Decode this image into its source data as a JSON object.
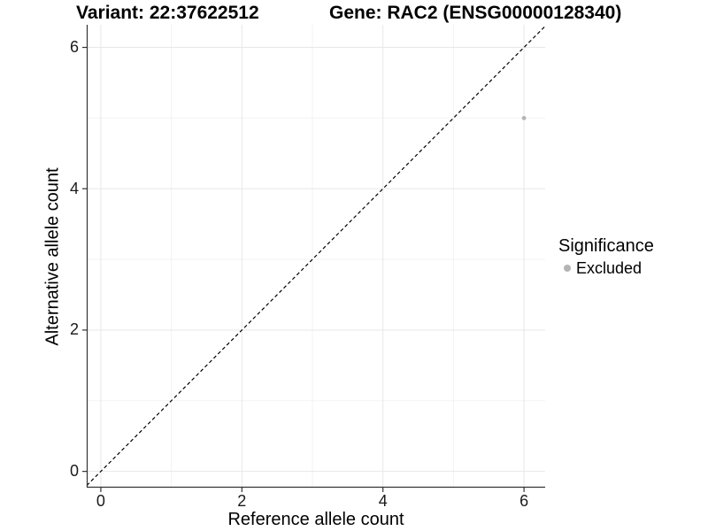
{
  "colors": {
    "background": "#ffffff",
    "axis_line": "#333333",
    "tick_mark": "#333333",
    "grid_major": "#e7e7e7",
    "grid_minor": "#f3f3f3",
    "identity_line": "#000000",
    "point_excluded": "#b4b4b4",
    "text": "#000000"
  },
  "chart_data": {
    "type": "scatter",
    "title_left": "Variant: 22:37622512",
    "title_right": "Gene: RAC2 (ENSG00000128340)",
    "xlabel": "Reference allele count",
    "ylabel": "Alternative allele count",
    "xlim": [
      -0.2,
      6.3
    ],
    "ylim": [
      -0.23,
      6.32
    ],
    "x_major_ticks": [
      0,
      2,
      4,
      6
    ],
    "x_minor_ticks": [
      1,
      3,
      5
    ],
    "y_major_ticks": [
      0,
      2,
      4,
      6
    ],
    "y_minor_ticks": [
      1,
      3,
      5
    ],
    "grid": true,
    "identity_line": {
      "show": true,
      "style": "dashed",
      "color": "#000000",
      "from": -0.2,
      "to": 6.3
    },
    "series": [
      {
        "name": "Excluded",
        "color": "#b4b4b4",
        "points": [
          {
            "x": 6,
            "y": 5
          }
        ]
      }
    ],
    "legend": {
      "title": "Significance",
      "position": "right",
      "items": [
        {
          "label": "Excluded",
          "color": "#b4b4b4"
        }
      ]
    }
  }
}
